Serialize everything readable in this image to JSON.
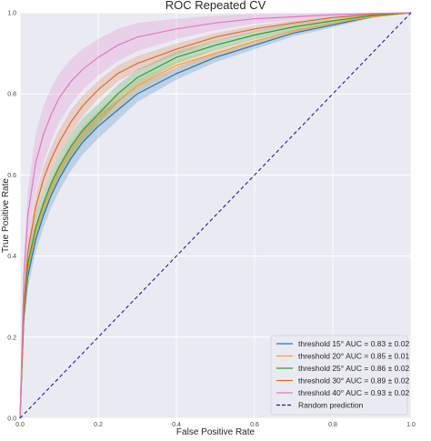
{
  "chart_data": {
    "type": "line",
    "title": "ROC Repeated CV",
    "xlabel": "False Positive Rate",
    "ylabel": "True Positive Rate",
    "xlim": [
      0,
      1
    ],
    "ylim": [
      0,
      1
    ],
    "xticks": [
      "0.0",
      "0.2",
      "0.4",
      "0.6",
      "0.8",
      "1.0"
    ],
    "yticks": [
      "0.0",
      "0.2",
      "0.4",
      "0.6",
      "0.8",
      "1.0"
    ],
    "grid": true,
    "legend_position": "lower-right",
    "background_color": "#eaeaf2",
    "series": [
      {
        "name": "threshold 15° AUC = 0.83 ± 0.02",
        "color": "#1f77b4",
        "x": [
          0,
          0.01,
          0.02,
          0.04,
          0.06,
          0.08,
          0.1,
          0.13,
          0.16,
          0.2,
          0.25,
          0.3,
          0.4,
          0.5,
          0.6,
          0.7,
          0.8,
          0.9,
          1.0
        ],
        "y": [
          0,
          0.25,
          0.35,
          0.44,
          0.5,
          0.55,
          0.59,
          0.64,
          0.68,
          0.72,
          0.76,
          0.8,
          0.85,
          0.89,
          0.92,
          0.95,
          0.97,
          0.99,
          1.0
        ],
        "band": [
          0.02,
          0.03,
          0.03,
          0.03,
          0.03,
          0.03,
          0.03,
          0.03,
          0.03,
          0.03,
          0.025,
          0.02,
          0.015,
          0.012,
          0.01,
          0.008,
          0.006,
          0.003,
          0
        ]
      },
      {
        "name": "threshold 20° AUC = 0.85 ± 0.01",
        "color": "#ff9e2c",
        "x": [
          0,
          0.01,
          0.02,
          0.04,
          0.06,
          0.08,
          0.1,
          0.13,
          0.16,
          0.2,
          0.25,
          0.3,
          0.4,
          0.5,
          0.6,
          0.7,
          0.8,
          0.9,
          1.0
        ],
        "y": [
          0,
          0.26,
          0.37,
          0.46,
          0.52,
          0.57,
          0.61,
          0.66,
          0.7,
          0.74,
          0.78,
          0.82,
          0.87,
          0.9,
          0.93,
          0.955,
          0.975,
          0.99,
          1.0
        ],
        "band": [
          0.02,
          0.02,
          0.02,
          0.02,
          0.02,
          0.02,
          0.02,
          0.02,
          0.02,
          0.02,
          0.018,
          0.015,
          0.012,
          0.01,
          0.008,
          0.006,
          0.004,
          0.002,
          0
        ]
      },
      {
        "name": "threshold 25° AUC = 0.86 ± 0.02",
        "color": "#2ca02c",
        "x": [
          0,
          0.01,
          0.02,
          0.04,
          0.06,
          0.08,
          0.1,
          0.13,
          0.16,
          0.2,
          0.25,
          0.3,
          0.4,
          0.5,
          0.6,
          0.7,
          0.8,
          0.9,
          1.0
        ],
        "y": [
          0,
          0.27,
          0.38,
          0.47,
          0.53,
          0.58,
          0.62,
          0.67,
          0.71,
          0.75,
          0.8,
          0.84,
          0.89,
          0.92,
          0.945,
          0.965,
          0.98,
          0.993,
          1.0
        ],
        "band": [
          0.02,
          0.03,
          0.03,
          0.03,
          0.03,
          0.03,
          0.03,
          0.03,
          0.03,
          0.025,
          0.022,
          0.02,
          0.015,
          0.012,
          0.01,
          0.008,
          0.005,
          0.003,
          0
        ]
      },
      {
        "name": "threshold 30° AUC = 0.89 ± 0.02",
        "color": "#dd6c2a",
        "x": [
          0,
          0.01,
          0.02,
          0.04,
          0.06,
          0.08,
          0.1,
          0.13,
          0.16,
          0.2,
          0.25,
          0.3,
          0.4,
          0.5,
          0.6,
          0.7,
          0.8,
          0.9,
          1.0
        ],
        "y": [
          0,
          0.28,
          0.41,
          0.52,
          0.59,
          0.64,
          0.68,
          0.73,
          0.77,
          0.81,
          0.85,
          0.875,
          0.91,
          0.94,
          0.96,
          0.975,
          0.988,
          0.996,
          1.0
        ],
        "band": [
          0.02,
          0.03,
          0.03,
          0.03,
          0.03,
          0.03,
          0.03,
          0.03,
          0.025,
          0.022,
          0.02,
          0.018,
          0.014,
          0.01,
          0.008,
          0.006,
          0.004,
          0.002,
          0
        ]
      },
      {
        "name": "threshold 40° AUC = 0.93 ± 0.02",
        "color": "#e377c2",
        "x": [
          0,
          0.01,
          0.02,
          0.04,
          0.06,
          0.08,
          0.1,
          0.13,
          0.16,
          0.2,
          0.25,
          0.3,
          0.4,
          0.5,
          0.6,
          0.7,
          0.8,
          0.9,
          1.0
        ],
        "y": [
          0,
          0.35,
          0.5,
          0.63,
          0.7,
          0.75,
          0.79,
          0.83,
          0.86,
          0.89,
          0.92,
          0.94,
          0.96,
          0.975,
          0.985,
          0.99,
          0.995,
          0.998,
          1.0
        ],
        "band": [
          0.03,
          0.05,
          0.06,
          0.07,
          0.07,
          0.065,
          0.06,
          0.055,
          0.05,
          0.045,
          0.04,
          0.035,
          0.025,
          0.018,
          0.012,
          0.008,
          0.005,
          0.003,
          0
        ]
      },
      {
        "name": "Random prediction",
        "color": "#1f1f8f",
        "dashed": true,
        "x": [
          0,
          1
        ],
        "y": [
          0,
          1
        ]
      }
    ]
  }
}
